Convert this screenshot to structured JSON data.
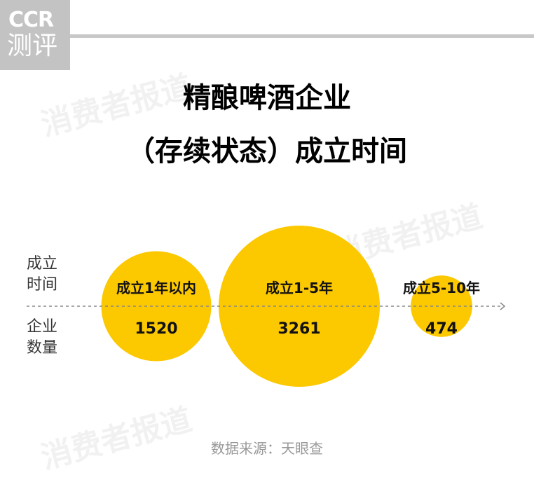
{
  "logo": {
    "en": "CCR",
    "cn": "测评"
  },
  "watermark": "消费者报道",
  "chart_data": {
    "type": "bubble",
    "title_line1": "精酿啤酒企业",
    "title_line2": "（存续状态）成立时间",
    "row_label_top": [
      "成立",
      "时间"
    ],
    "row_label_bottom": [
      "企业",
      "数量"
    ],
    "categories": [
      "成立1年以内",
      "成立1-5年",
      "成立5-10年"
    ],
    "values": [
      1520,
      3261,
      474
    ],
    "bubble_size_encoding": "area",
    "colors": {
      "bubble": "#fcc800",
      "axis": "#888888"
    }
  },
  "source": "数据来源：天眼查"
}
